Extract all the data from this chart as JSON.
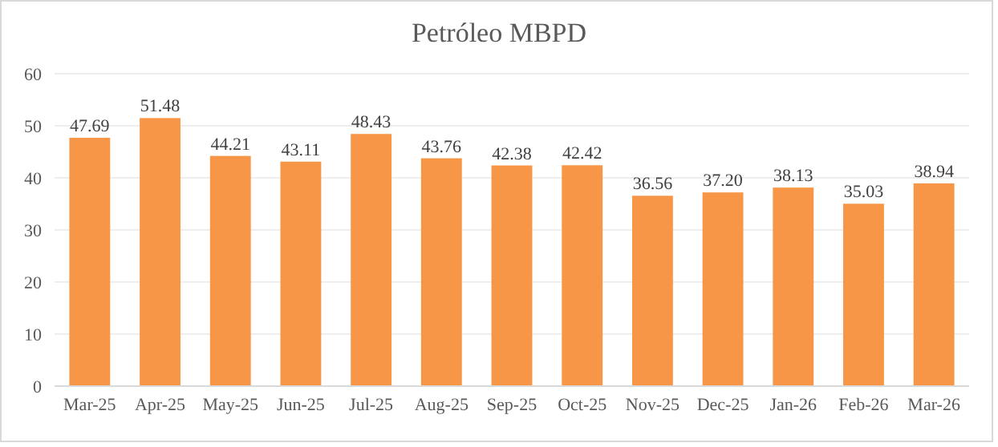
{
  "chart_data": {
    "type": "bar",
    "title": "Petróleo MBPD",
    "categories": [
      "Mar-25",
      "Apr-25",
      "May-25",
      "Jun-25",
      "Jul-25",
      "Aug-25",
      "Sep-25",
      "Oct-25",
      "Nov-25",
      "Dec-25",
      "Jan-26",
      "Feb-26",
      "Mar-26"
    ],
    "values": [
      47.69,
      51.48,
      44.21,
      43.11,
      48.43,
      43.76,
      42.38,
      42.42,
      36.56,
      37.2,
      38.13,
      35.03,
      38.94
    ],
    "value_labels": [
      "47.69",
      "51.48",
      "44.21",
      "43.11",
      "48.43",
      "43.76",
      "42.38",
      "42.42",
      "36.56",
      "37.20",
      "38.13",
      "35.03",
      "38.94"
    ],
    "color": "#f79646",
    "ylim": [
      0,
      60
    ],
    "yticks": [
      0,
      10,
      20,
      30,
      40,
      50,
      60
    ],
    "grid": "y"
  }
}
